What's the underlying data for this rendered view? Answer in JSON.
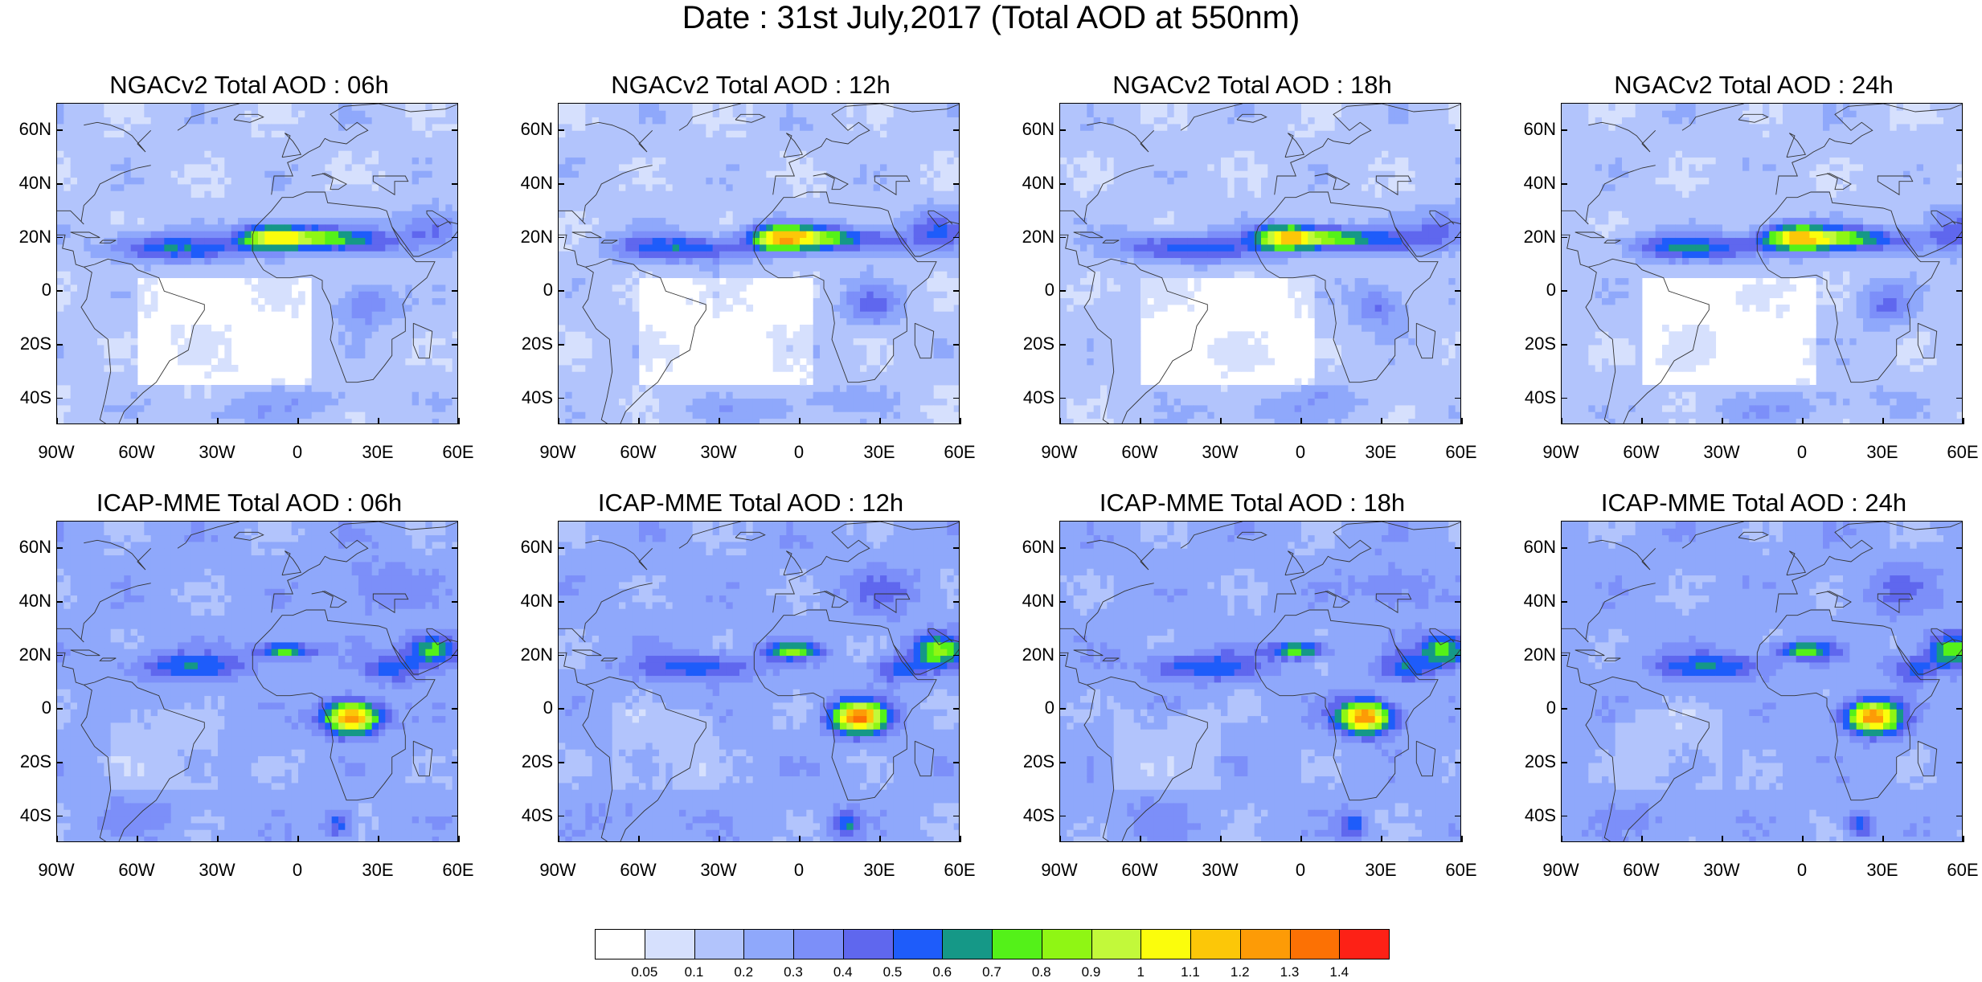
{
  "title": "Date : 31st July,2017 (Total AOD at 550nm)",
  "panels": [
    {
      "title": "NGACv2 Total AOD : 06h",
      "model": "ngac",
      "hour": "06"
    },
    {
      "title": "NGACv2 Total AOD : 12h",
      "model": "ngac",
      "hour": "12"
    },
    {
      "title": "NGACv2 Total AOD : 18h",
      "model": "ngac",
      "hour": "18"
    },
    {
      "title": "NGACv2 Total AOD : 24h",
      "model": "ngac",
      "hour": "24"
    },
    {
      "title": "ICAP-MME Total AOD : 06h",
      "model": "icap",
      "hour": "06"
    },
    {
      "title": "ICAP-MME Total AOD : 12h",
      "model": "icap",
      "hour": "12"
    },
    {
      "title": "ICAP-MME Total AOD : 18h",
      "model": "icap",
      "hour": "18"
    },
    {
      "title": "ICAP-MME Total AOD : 24h",
      "model": "icap",
      "hour": "24"
    }
  ],
  "map": {
    "lon_range": [
      -90,
      60
    ],
    "lat_range": [
      -50,
      70
    ],
    "lat_ticks": [
      "60N",
      "40N",
      "20N",
      "0",
      "20S",
      "40S"
    ],
    "lat_values": [
      60,
      40,
      20,
      0,
      -20,
      -40
    ],
    "lon_ticks": [
      "90W",
      "60W",
      "30W",
      "0",
      "30E",
      "60E"
    ],
    "lon_values": [
      -90,
      -60,
      -30,
      0,
      30,
      60
    ]
  },
  "colorbar": {
    "labels": [
      "0.05",
      "0.1",
      "0.2",
      "0.3",
      "0.4",
      "0.5",
      "0.6",
      "0.7",
      "0.8",
      "0.9",
      "1",
      "1.1",
      "1.2",
      "1.3",
      "1.4"
    ],
    "colors": [
      "#ffffff",
      "#d6e0fd",
      "#b2c4fc",
      "#8fa8fb",
      "#7c8ff9",
      "#5f67ee",
      "#1e5cfa",
      "#159887",
      "#54f119",
      "#8ff614",
      "#c2f93a",
      "#fbfd0c",
      "#fcc708",
      "#fd9b06",
      "#fc7104",
      "#fd2116"
    ]
  }
}
